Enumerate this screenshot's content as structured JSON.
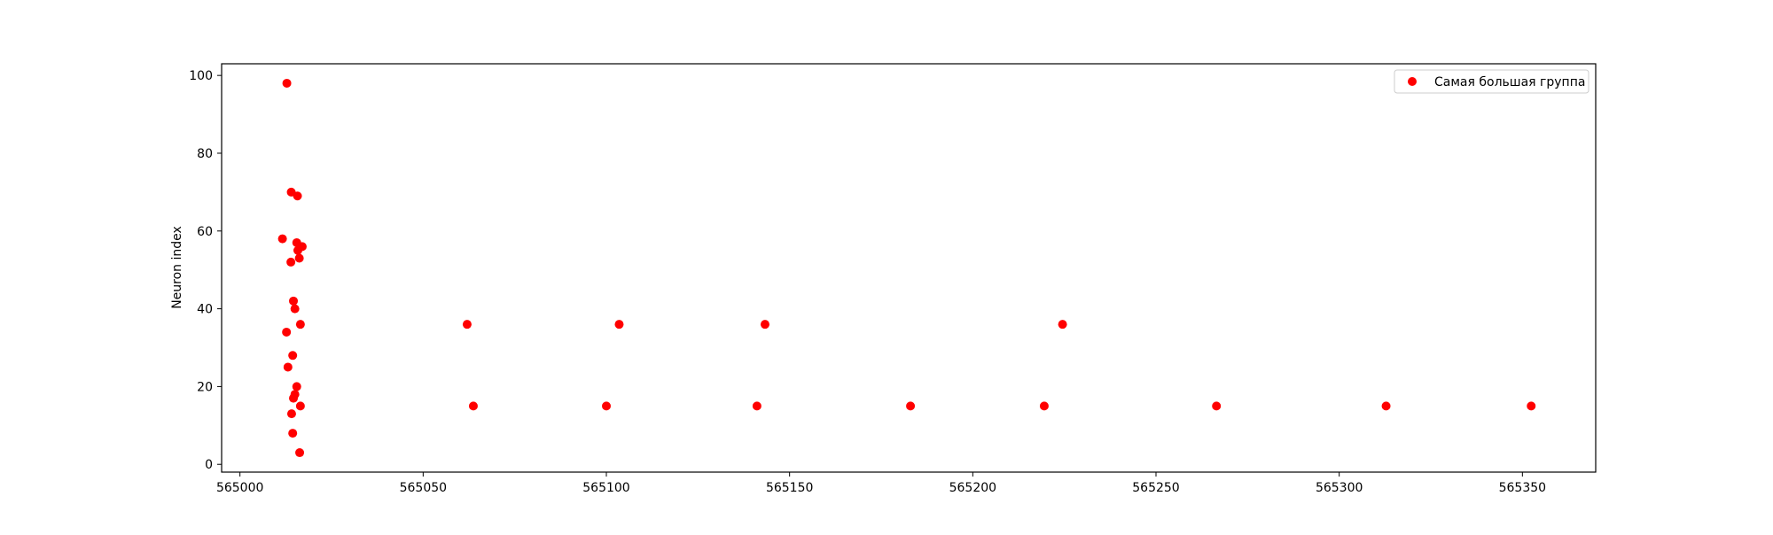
{
  "chart_data": {
    "type": "scatter",
    "title": "",
    "xlabel": "",
    "ylabel": "Neuron index",
    "xlim": [
      564995,
      565370
    ],
    "ylim": [
      -2,
      103
    ],
    "xticks": [
      565000,
      565050,
      565100,
      565150,
      565200,
      565250,
      565300,
      565350
    ],
    "yticks": [
      0,
      20,
      40,
      60,
      80,
      100
    ],
    "grid": false,
    "legend_position": "top-right",
    "series": [
      {
        "name": "Самая большая группа",
        "color": "#ff0000",
        "points": [
          {
            "x": 565012.8,
            "y": 98
          },
          {
            "x": 565014.0,
            "y": 70
          },
          {
            "x": 565015.7,
            "y": 69
          },
          {
            "x": 565011.6,
            "y": 58
          },
          {
            "x": 565015.5,
            "y": 57
          },
          {
            "x": 565017.0,
            "y": 56
          },
          {
            "x": 565015.8,
            "y": 55
          },
          {
            "x": 565016.2,
            "y": 53
          },
          {
            "x": 565013.9,
            "y": 52
          },
          {
            "x": 565014.6,
            "y": 42
          },
          {
            "x": 565015.0,
            "y": 40
          },
          {
            "x": 565016.5,
            "y": 36
          },
          {
            "x": 565012.7,
            "y": 34
          },
          {
            "x": 565014.4,
            "y": 28
          },
          {
            "x": 565013.1,
            "y": 25
          },
          {
            "x": 565015.5,
            "y": 20
          },
          {
            "x": 565015.0,
            "y": 18
          },
          {
            "x": 565014.6,
            "y": 17
          },
          {
            "x": 565016.5,
            "y": 15
          },
          {
            "x": 565014.1,
            "y": 13
          },
          {
            "x": 565014.4,
            "y": 8
          },
          {
            "x": 565016.3,
            "y": 3
          },
          {
            "x": 565062.0,
            "y": 36
          },
          {
            "x": 565063.7,
            "y": 15
          },
          {
            "x": 565100.0,
            "y": 15
          },
          {
            "x": 565103.5,
            "y": 36
          },
          {
            "x": 565141.1,
            "y": 15
          },
          {
            "x": 565143.3,
            "y": 36
          },
          {
            "x": 565183.0,
            "y": 15
          },
          {
            "x": 565219.5,
            "y": 15
          },
          {
            "x": 565224.5,
            "y": 36
          },
          {
            "x": 565266.5,
            "y": 15
          },
          {
            "x": 565312.8,
            "y": 15
          },
          {
            "x": 565352.4,
            "y": 15
          }
        ]
      }
    ]
  }
}
